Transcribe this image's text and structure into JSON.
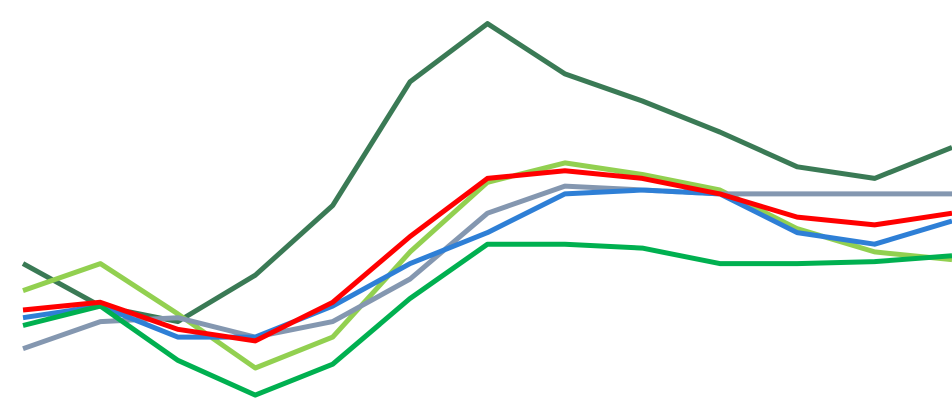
{
  "chart_data": {
    "type": "line",
    "x": [
      0,
      1,
      2,
      3,
      4,
      5,
      6,
      7,
      8,
      9,
      10,
      11,
      12
    ],
    "xlim": [
      0,
      12
    ],
    "ylim": [
      0,
      100
    ],
    "grid": false,
    "legend": "none",
    "series": [
      {
        "color": "#3a7a55",
        "values": [
          35,
          24,
          20,
          32,
          50,
          82,
          97,
          84,
          77,
          69,
          60,
          57,
          65
        ]
      },
      {
        "color": "#92d050",
        "values": [
          28,
          35,
          22,
          8,
          16,
          38,
          56,
          61,
          58,
          54,
          44,
          38,
          36
        ]
      },
      {
        "color": "#8497b0",
        "values": [
          13,
          20,
          21,
          16,
          20,
          31,
          48,
          55,
          54,
          53,
          53,
          53,
          53
        ]
      },
      {
        "color": "#2e7fd6",
        "values": [
          21,
          24,
          16,
          16,
          24,
          35,
          43,
          53,
          54,
          53,
          43,
          40,
          46
        ]
      },
      {
        "color": "#00b050",
        "values": [
          19,
          24,
          10,
          1,
          9,
          26,
          40,
          40,
          39,
          35,
          35,
          35.5,
          37
        ]
      },
      {
        "color": "#ff0000",
        "values": [
          23,
          25,
          18,
          15,
          25,
          42,
          57,
          59,
          57,
          53,
          47,
          45,
          48
        ]
      }
    ]
  }
}
